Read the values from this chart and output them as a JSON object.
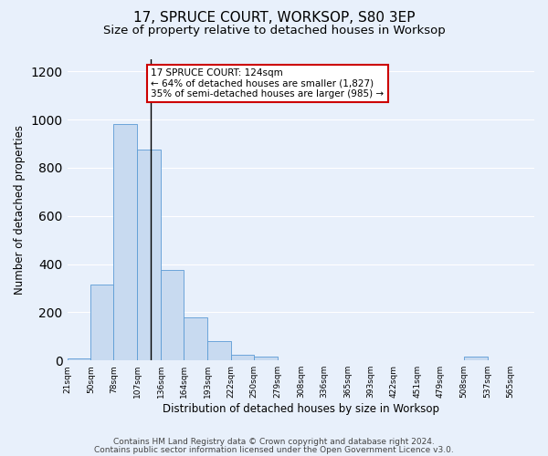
{
  "title1": "17, SPRUCE COURT, WORKSOP, S80 3EP",
  "title2": "Size of property relative to detached houses in Worksop",
  "xlabel": "Distribution of detached houses by size in Worksop",
  "ylabel": "Number of detached properties",
  "footnote1": "Contains HM Land Registry data © Crown copyright and database right 2024.",
  "footnote2": "Contains public sector information licensed under the Open Government Licence v3.0.",
  "annotation_line1": "17 SPRUCE COURT: 124sqm",
  "annotation_line2": "← 64% of detached houses are smaller (1,827)",
  "annotation_line3": "35% of semi-detached houses are larger (985) →",
  "bar_edges": [
    21,
    50,
    78,
    107,
    136,
    164,
    193,
    222,
    250,
    279,
    308,
    336,
    365,
    393,
    422,
    451,
    479,
    508,
    537,
    565,
    594
  ],
  "bar_heights": [
    10,
    315,
    980,
    875,
    375,
    180,
    80,
    25,
    15,
    0,
    0,
    0,
    0,
    0,
    0,
    0,
    0,
    15,
    0,
    0,
    0
  ],
  "bar_color": "#c8daf0",
  "bar_edge_color": "#5b9bd5",
  "vline_x": 124,
  "vline_color": "#000000",
  "box_color": "#ffffff",
  "box_edge_color": "#cc0000",
  "ylim": [
    0,
    1250
  ],
  "background_color": "#e8f0fb",
  "grid_color": "#ffffff",
  "title1_fontsize": 11,
  "title2_fontsize": 9.5,
  "xlabel_fontsize": 8.5,
  "ylabel_fontsize": 8.5,
  "tick_fontsize": 6.5,
  "annotation_fontsize": 7.5,
  "footnote_fontsize": 6.5
}
